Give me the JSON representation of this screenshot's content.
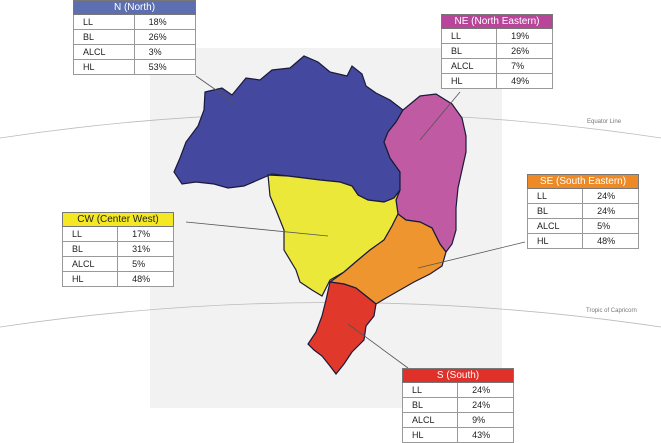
{
  "lines": {
    "equator": "Equator Line",
    "tropic": "Tropic of Capricorn"
  },
  "colors": {
    "north": "#44489e",
    "north_east": "#c05aa2",
    "center_west": "#ece83a",
    "south_east": "#ee9530",
    "south": "#e0382a"
  },
  "regions": {
    "north": {
      "title": "N (North)",
      "header_color": "#5d6fb1",
      "rows": [
        {
          "label": "LL",
          "value": "18%"
        },
        {
          "label": "BL",
          "value": "26%"
        },
        {
          "label": "ALCL",
          "value": "3%"
        },
        {
          "label": "HL",
          "value": "53%"
        }
      ]
    },
    "north_east": {
      "title": "NE (North Eastern)",
      "header_color": "#b9459a",
      "rows": [
        {
          "label": "LL",
          "value": "19%"
        },
        {
          "label": "BL",
          "value": "26%"
        },
        {
          "label": "ALCL",
          "value": "7%"
        },
        {
          "label": "HL",
          "value": "49%"
        }
      ]
    },
    "south_east": {
      "title": "SE (South Eastern)",
      "header_color": "#ee8a25",
      "rows": [
        {
          "label": "LL",
          "value": "24%"
        },
        {
          "label": "BL",
          "value": "24%"
        },
        {
          "label": "ALCL",
          "value": "5%"
        },
        {
          "label": "HL",
          "value": "48%"
        }
      ]
    },
    "center_west": {
      "title": "CW (Center West)",
      "header_color": "#f3e822",
      "rows": [
        {
          "label": "LL",
          "value": "17%"
        },
        {
          "label": "BL",
          "value": "31%"
        },
        {
          "label": "ALCL",
          "value": "5%"
        },
        {
          "label": "HL",
          "value": "48%"
        }
      ]
    },
    "south": {
      "title": "S (South)",
      "header_color": "#e0302a",
      "rows": [
        {
          "label": "LL",
          "value": "24%"
        },
        {
          "label": "BL",
          "value": "24%"
        },
        {
          "label": "ALCL",
          "value": "9%"
        },
        {
          "label": "HL",
          "value": "43%"
        }
      ]
    }
  }
}
